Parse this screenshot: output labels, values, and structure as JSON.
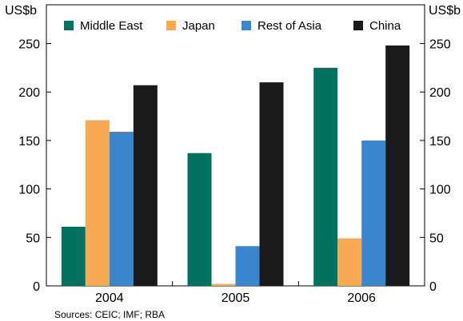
{
  "chart_data": {
    "type": "bar",
    "categories": [
      "2004",
      "2005",
      "2006"
    ],
    "series": [
      {
        "name": "Middle East",
        "color": "#00725f",
        "values": [
          61,
          137,
          225
        ]
      },
      {
        "name": "Japan",
        "color": "#f7aa51",
        "values": [
          171,
          2,
          49
        ]
      },
      {
        "name": "Rest of Asia",
        "color": "#3b87cf",
        "values": [
          159,
          41,
          150
        ]
      },
      {
        "name": "China",
        "color": "#1a1a1a",
        "values": [
          207,
          210,
          248
        ]
      }
    ],
    "ylim": [
      0,
      290
    ],
    "yticks": [
      0,
      50,
      100,
      150,
      200,
      250
    ],
    "y_unit_left": "US$b",
    "y_unit_right": "US$b",
    "legend_position": "top",
    "grid": false,
    "source": "Sources: CEIC; IMF; RBA"
  }
}
